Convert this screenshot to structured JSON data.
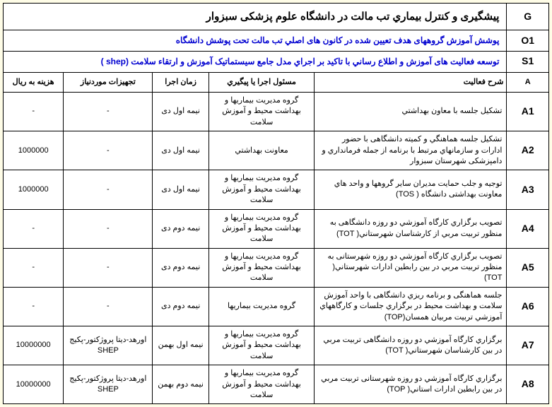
{
  "header": {
    "g_code": "G",
    "g_title": "پیشگیری و کنترل بیماري تب مالت در دانشگاه علوم پزشکی سبزوار",
    "o1_code": "O1",
    "o1_title": "پوشش آموزش گروههای هدف تعیین شده در کانون های اصلي تب مالت  تحت پوشش دانشگاه",
    "s1_code": "S1",
    "s1_title": "توسعه فعالیت های آموزش  و اطلاع رساني با تاکید بر اجراي مدل جامع سیستماتیک آموزش و ارتقاء سلامت (shep  )"
  },
  "columns": {
    "code": "A",
    "desc": "شرح فعالیت",
    "resp": "مسئول اجرا یا پیگیري",
    "time": "زمان اجرا",
    "equip": "تجهیزات موردنیاز",
    "cost": "هزینه به ریال"
  },
  "rows": [
    {
      "code": "A1",
      "desc": "تشکیل جلسه  با معاون  بهداشتي",
      "resp": "گروه مدیریت بیماریها و بهداشت محیط و آموزش سلامت",
      "time": "نیمه اول دی",
      "equip": "-",
      "cost": "-"
    },
    {
      "code": "A2",
      "desc": "تشکیل جلسه هماهنگي و کمیته دانشگاهی با حضور ادارات و سازمانهاي مرتبط با برنامه از جمله فرمانداري و دامپزشکی شهرستان سبزوار",
      "resp": "معاونت بهداشتي",
      "time": "نیمه اول دی",
      "equip": "-",
      "cost": "1000000"
    },
    {
      "code": "A3",
      "desc": "توجیه و جلب حمایت مدیران سایر گروهها و واحد هاي معاونت بهداشتی دانشگاه ( TOS)",
      "resp": "گروه مدیریت بیماریها و بهداشت محیط و آموزش سلامت",
      "time": "نیمه اول دی",
      "equip": "-",
      "cost": "1000000"
    },
    {
      "code": "A4",
      "desc": "تصویب برگزاري کارگاه آموزشي دو روزه دانشگاهی به منظور  تربیت مربي از کارشناسان شهرستاني( TOT)",
      "resp": "گروه مدیریت بیماریها و بهداشت محیط و آموزش سلامت",
      "time": "نیمه دوم دی",
      "equip": "-",
      "cost": "-"
    },
    {
      "code": "A5",
      "desc": "تصویب برگزاري کارگاه آموزشي دو روزه شهرستانی به منظور  تربیت مربي در بین رابطین ادارات شهرستاني( TOT)",
      "resp": "گروه مدیریت بیماریها و بهداشت محیط و آموزش سلامت",
      "time": "نیمه دوم دی",
      "equip": "-",
      "cost": "-"
    },
    {
      "code": "A6",
      "desc": "جلسه هماهنگی و برنامه ریزي دانشگاهی با واحد آموزش سلامت  و بهداشت محیط در برگزاري جلسات و کارگاههاي آموزشي تربیت مربیان همسان(TOP)",
      "resp": "گروه مدیریت بیماریها",
      "time": "نیمه دوم دی",
      "equip": "-",
      "cost": "-"
    },
    {
      "code": "A7",
      "desc": "برگزاري کارگاه آموزشي دو روزه دانشگاهی تربیت مربي در بین کارشناسان شهرستاني( TOT)",
      "resp": "گروه مدیریت بیماریها و بهداشت محیط و آموزش سلامت",
      "time": "نیمه اول بهمن",
      "equip": "اورهد-دیتا پروژکتور-پکیج SHEP",
      "cost": "10000000"
    },
    {
      "code": "A8",
      "desc": "برگزاري کارگاه آموزشي دو روزه شهرستانی تربیت مربي در بین رابطین ادارات استاني( TOP)",
      "resp": "گروه مدیریت بیماریها و بهداشت محیط و آموزش سلامت",
      "time": "نیمه دوم بهمن",
      "equip": "اورهد-دیتا پروژکتور-پکیج SHEP",
      "cost": "10000000"
    }
  ]
}
